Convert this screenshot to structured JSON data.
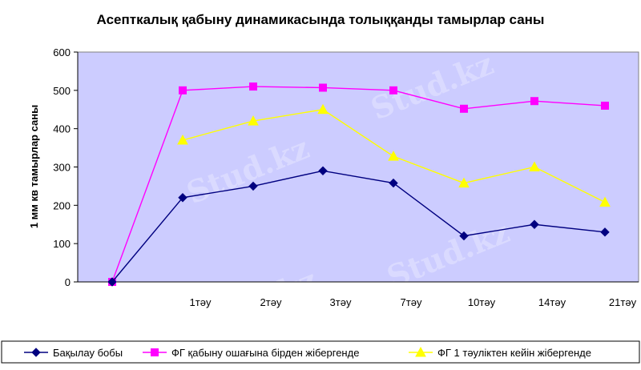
{
  "chart_data": {
    "type": "line",
    "title": "Асепткалық қабыну  динамикасында толыққанды тамырлар саны",
    "ylabel": "1 мм кв тамырлар саны",
    "xlabel": "",
    "categories": [
      "",
      "1тәу",
      "2тәу",
      "3тәу",
      "7тәу",
      "10тәу",
      "14тәу",
      "21тәу"
    ],
    "ylim": [
      0,
      600
    ],
    "yticks": [
      0,
      100,
      200,
      300,
      400,
      500,
      600
    ],
    "grid": false,
    "legend_position": "bottom",
    "plot_background": "#ccccff",
    "series": [
      {
        "name": "Бақылау бобы",
        "color": "#000080",
        "marker": "diamond",
        "values": [
          0,
          220,
          250,
          290,
          258,
          120,
          150,
          130
        ]
      },
      {
        "name": "ФГ қабыну ошағына бірден жібергенде",
        "color": "#ff00ff",
        "marker": "square",
        "values": [
          0,
          500,
          510,
          507,
          500,
          452,
          472,
          460
        ]
      },
      {
        "name": "ФГ 1 тәуліктен кейін жібергенде",
        "color": "#ffff00",
        "marker": "triangle",
        "values": [
          null,
          370,
          420,
          450,
          328,
          258,
          300,
          208
        ]
      }
    ]
  },
  "watermark": "Stud.kz"
}
